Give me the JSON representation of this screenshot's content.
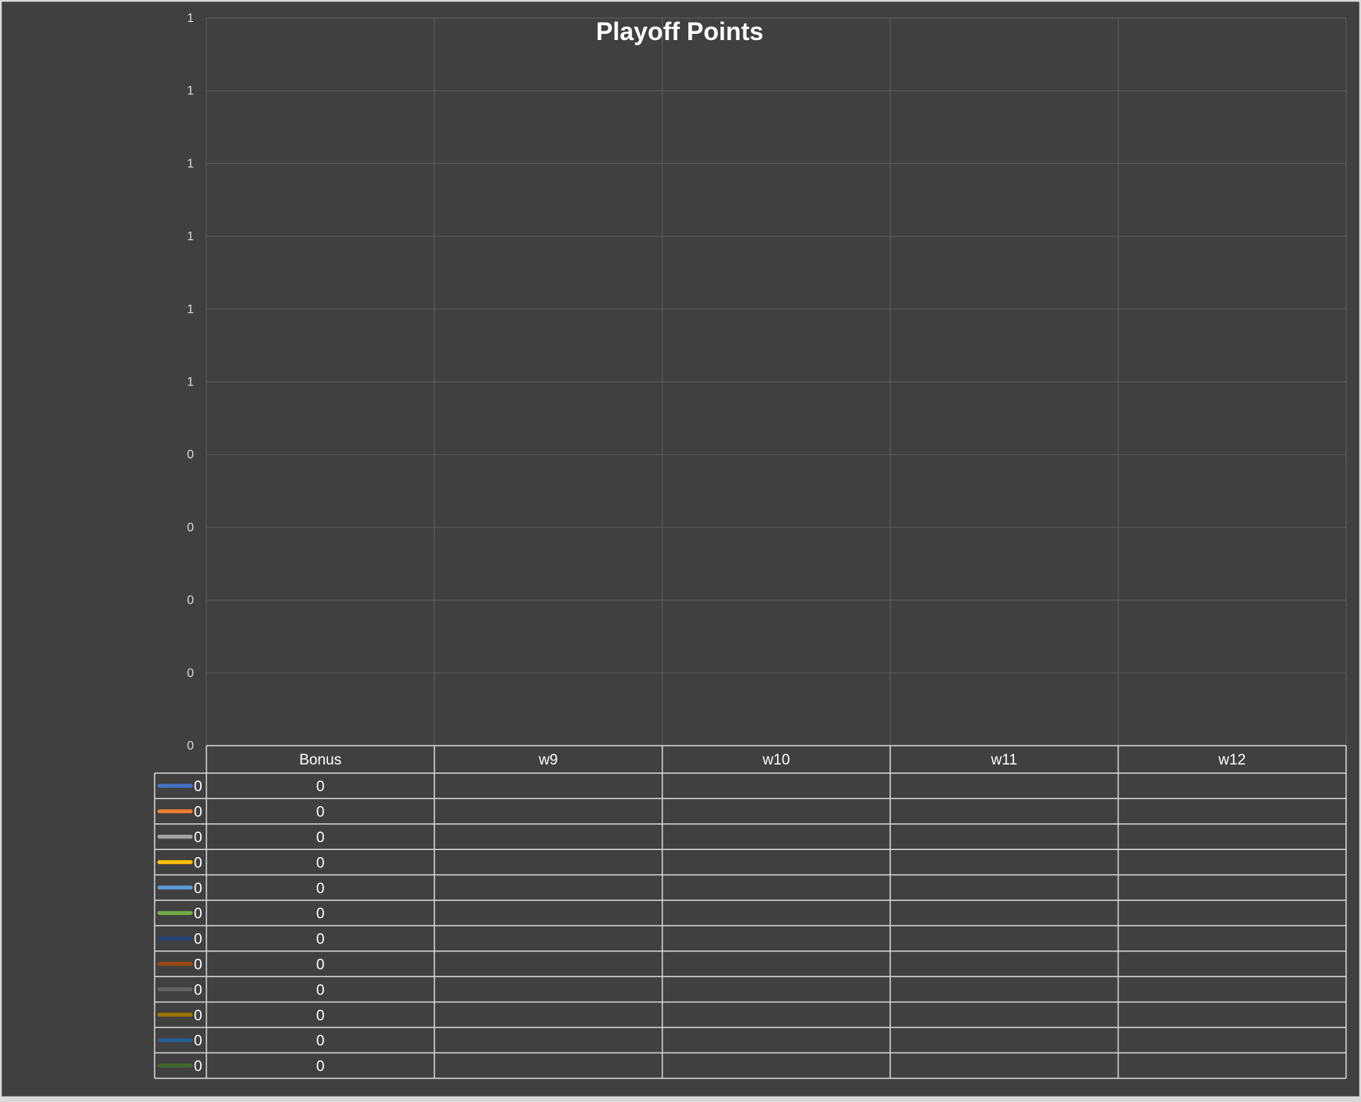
{
  "chart_data": {
    "type": "line",
    "title": "Playoff Points",
    "xlabel": "",
    "ylabel": "",
    "categories": [
      "Bonus",
      "w9",
      "w10",
      "w11",
      "w12"
    ],
    "y_tick_labels": [
      "1",
      "1",
      "1",
      "1",
      "1",
      "1",
      "0",
      "0",
      "0",
      "0",
      "0"
    ],
    "ylim": [
      0,
      1
    ],
    "grid": true,
    "legend": "data-table",
    "series": [
      {
        "name": "0",
        "color": "#4472c4",
        "values": [
          0,
          null,
          null,
          null,
          null
        ]
      },
      {
        "name": "0",
        "color": "#ed7d31",
        "values": [
          0,
          null,
          null,
          null,
          null
        ]
      },
      {
        "name": "0",
        "color": "#a5a5a5",
        "values": [
          0,
          null,
          null,
          null,
          null
        ]
      },
      {
        "name": "0",
        "color": "#ffc000",
        "values": [
          0,
          null,
          null,
          null,
          null
        ]
      },
      {
        "name": "0",
        "color": "#5b9bd5",
        "values": [
          0,
          null,
          null,
          null,
          null
        ]
      },
      {
        "name": "0",
        "color": "#70ad47",
        "values": [
          0,
          null,
          null,
          null,
          null
        ]
      },
      {
        "name": "0",
        "color": "#264478",
        "values": [
          0,
          null,
          null,
          null,
          null
        ]
      },
      {
        "name": "0",
        "color": "#9e480e",
        "values": [
          0,
          null,
          null,
          null,
          null
        ]
      },
      {
        "name": "0",
        "color": "#636363",
        "values": [
          0,
          null,
          null,
          null,
          null
        ]
      },
      {
        "name": "0",
        "color": "#997300",
        "values": [
          0,
          null,
          null,
          null,
          null
        ]
      },
      {
        "name": "0",
        "color": "#255e91",
        "values": [
          0,
          null,
          null,
          null,
          null
        ]
      },
      {
        "name": "0",
        "color": "#43682b",
        "values": [
          0,
          null,
          null,
          null,
          null
        ]
      }
    ]
  },
  "colors": {
    "chart_background": "#404040",
    "frame": "#d9d9d9",
    "gridline": "#595959",
    "table_line": "#d9d9d9",
    "title_text": "#ffffff",
    "tick_text": "#d9d9d9",
    "cell_text": "#ffffff"
  }
}
